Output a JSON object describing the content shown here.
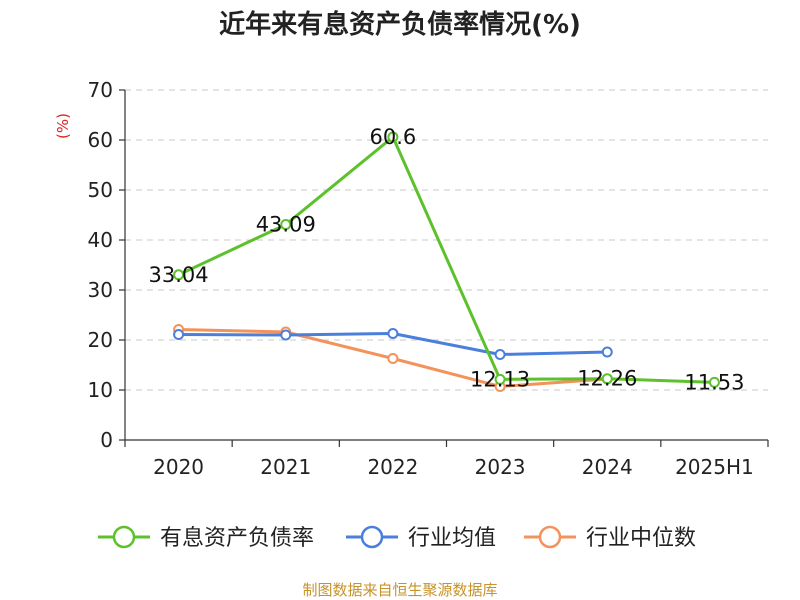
{
  "chart_data": {
    "type": "line",
    "title": "近年来有息资产负债率情况(%)",
    "ylabel": "(%)",
    "xlabel": "",
    "categories": [
      "2020",
      "2021",
      "2022",
      "2023",
      "2024",
      "2025H1"
    ],
    "ylim": [
      0,
      70
    ],
    "yticks": [
      "0",
      "10",
      "20",
      "30",
      "40",
      "50",
      "60",
      "70"
    ],
    "grid": true,
    "legend_position": "bottom",
    "series": [
      {
        "name": "有息资产负债率",
        "color": "#5cc12b",
        "values": [
          33.04,
          43.09,
          60.6,
          12.13,
          12.26,
          11.53
        ],
        "labels": [
          "33.04",
          "43.09",
          "60.6",
          "12.13",
          "12.26",
          "11.53"
        ]
      },
      {
        "name": "行业均值",
        "color": "#4a7fdc",
        "values": [
          21.1,
          21.0,
          21.3,
          17.1,
          17.6,
          null
        ]
      },
      {
        "name": "行业中位数",
        "color": "#f4925b",
        "values": [
          22.1,
          21.6,
          16.3,
          10.7,
          12.2,
          null
        ]
      }
    ],
    "source": "制图数据来自恒生聚源数据库"
  }
}
